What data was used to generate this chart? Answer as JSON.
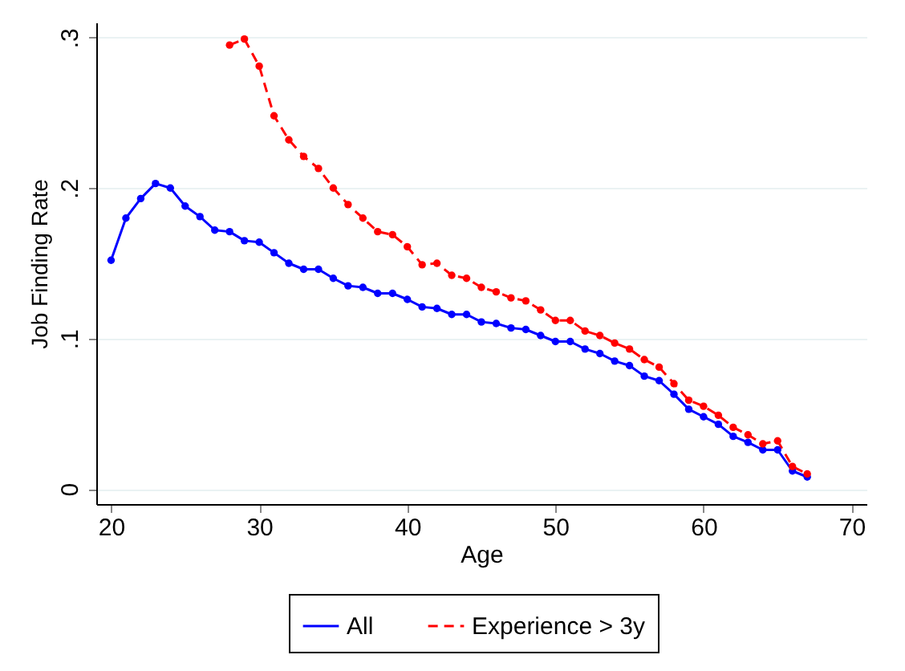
{
  "chart_data": {
    "type": "line",
    "xlabel": "Age",
    "ylabel": "Job Finding Rate",
    "xlim": [
      19,
      71
    ],
    "xticks": [
      20,
      30,
      40,
      50,
      60,
      70
    ],
    "ylim": [
      -0.01,
      0.31
    ],
    "yticks": [
      {
        "value": 0,
        "label": "0"
      },
      {
        "value": 0.1,
        "label": ".1"
      },
      {
        "value": 0.2,
        "label": ".2"
      },
      {
        "value": 0.3,
        "label": ".3"
      }
    ],
    "grid": "y",
    "legend": "bottom",
    "marker": "circle",
    "series": [
      {
        "name": "All",
        "color": "#0000ff",
        "line_style": "solid",
        "x": [
          20,
          21,
          22,
          23,
          24,
          25,
          26,
          27,
          28,
          29,
          30,
          31,
          32,
          33,
          34,
          35,
          36,
          37,
          38,
          39,
          40,
          41,
          42,
          43,
          44,
          45,
          46,
          47,
          48,
          49,
          50,
          51,
          52,
          53,
          54,
          55,
          56,
          57,
          58,
          59,
          60,
          61,
          62,
          63,
          64,
          65,
          66,
          67
        ],
        "values": [
          0.152,
          0.18,
          0.193,
          0.203,
          0.2,
          0.188,
          0.181,
          0.172,
          0.171,
          0.165,
          0.164,
          0.157,
          0.15,
          0.146,
          0.146,
          0.14,
          0.135,
          0.134,
          0.13,
          0.13,
          0.126,
          0.121,
          0.12,
          0.116,
          0.116,
          0.111,
          0.11,
          0.107,
          0.106,
          0.102,
          0.098,
          0.098,
          0.093,
          0.09,
          0.085,
          0.082,
          0.075,
          0.072,
          0.063,
          0.053,
          0.048,
          0.043,
          0.035,
          0.031,
          0.026,
          0.026,
          0.012,
          0.008
        ]
      },
      {
        "name": "Experience > 3y",
        "color": "#ff0000",
        "line_style": "dashed",
        "x": [
          28,
          29,
          30,
          31,
          32,
          33,
          34,
          35,
          36,
          37,
          38,
          39,
          40,
          41,
          42,
          43,
          44,
          45,
          46,
          47,
          48,
          49,
          50,
          51,
          52,
          53,
          54,
          55,
          56,
          57,
          58,
          59,
          60,
          61,
          62,
          63,
          64,
          65,
          66,
          67
        ],
        "values": [
          0.295,
          0.299,
          0.281,
          0.248,
          0.232,
          0.221,
          0.213,
          0.2,
          0.189,
          0.18,
          0.171,
          0.169,
          0.161,
          0.149,
          0.15,
          0.142,
          0.14,
          0.134,
          0.131,
          0.127,
          0.125,
          0.119,
          0.112,
          0.112,
          0.105,
          0.102,
          0.097,
          0.093,
          0.086,
          0.081,
          0.07,
          0.059,
          0.055,
          0.049,
          0.041,
          0.036,
          0.03,
          0.032,
          0.015,
          0.01
        ]
      }
    ]
  }
}
